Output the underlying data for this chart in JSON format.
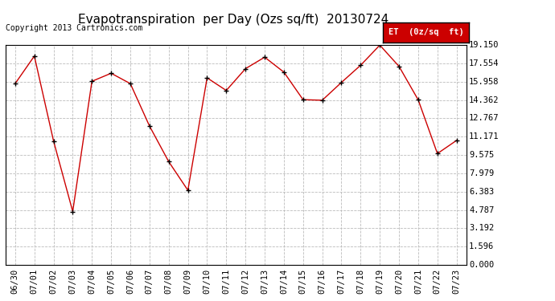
{
  "title": "Evapotranspiration  per Day (Ozs sq/ft)  20130724",
  "copyright": "Copyright 2013 Cartronics.com",
  "legend_label": "ET  (0z/sq  ft)",
  "x_labels": [
    "06/30",
    "07/01",
    "07/02",
    "07/03",
    "07/04",
    "07/05",
    "07/06",
    "07/07",
    "07/08",
    "07/09",
    "07/10",
    "07/11",
    "07/12",
    "07/13",
    "07/14",
    "07/15",
    "07/16",
    "07/17",
    "07/18",
    "07/19",
    "07/20",
    "07/21",
    "07/22",
    "07/23"
  ],
  "y_values": [
    15.8,
    18.2,
    10.8,
    4.65,
    16.0,
    16.7,
    15.8,
    12.1,
    9.0,
    6.5,
    16.3,
    15.2,
    17.1,
    18.1,
    16.8,
    14.4,
    14.35,
    15.9,
    17.4,
    19.15,
    17.3,
    14.38,
    9.7,
    10.85
  ],
  "y_ticks": [
    0.0,
    1.596,
    3.192,
    4.787,
    6.383,
    7.979,
    9.575,
    11.171,
    12.767,
    14.362,
    15.958,
    17.554,
    19.15
  ],
  "y_tick_labels": [
    "0.000",
    "1.596",
    "3.192",
    "4.787",
    "6.383",
    "7.979",
    "9.575",
    "11.171",
    "12.767",
    "14.362",
    "15.958",
    "17.554",
    "19.150"
  ],
  "line_color": "#cc0000",
  "marker_color": "#000000",
  "background_color": "#ffffff",
  "grid_color": "#bbbbbb",
  "legend_bg": "#cc0000",
  "legend_text_color": "#ffffff",
  "title_fontsize": 11,
  "copyright_fontsize": 7,
  "tick_fontsize": 7.5,
  "ylim": [
    0.0,
    19.15
  ]
}
